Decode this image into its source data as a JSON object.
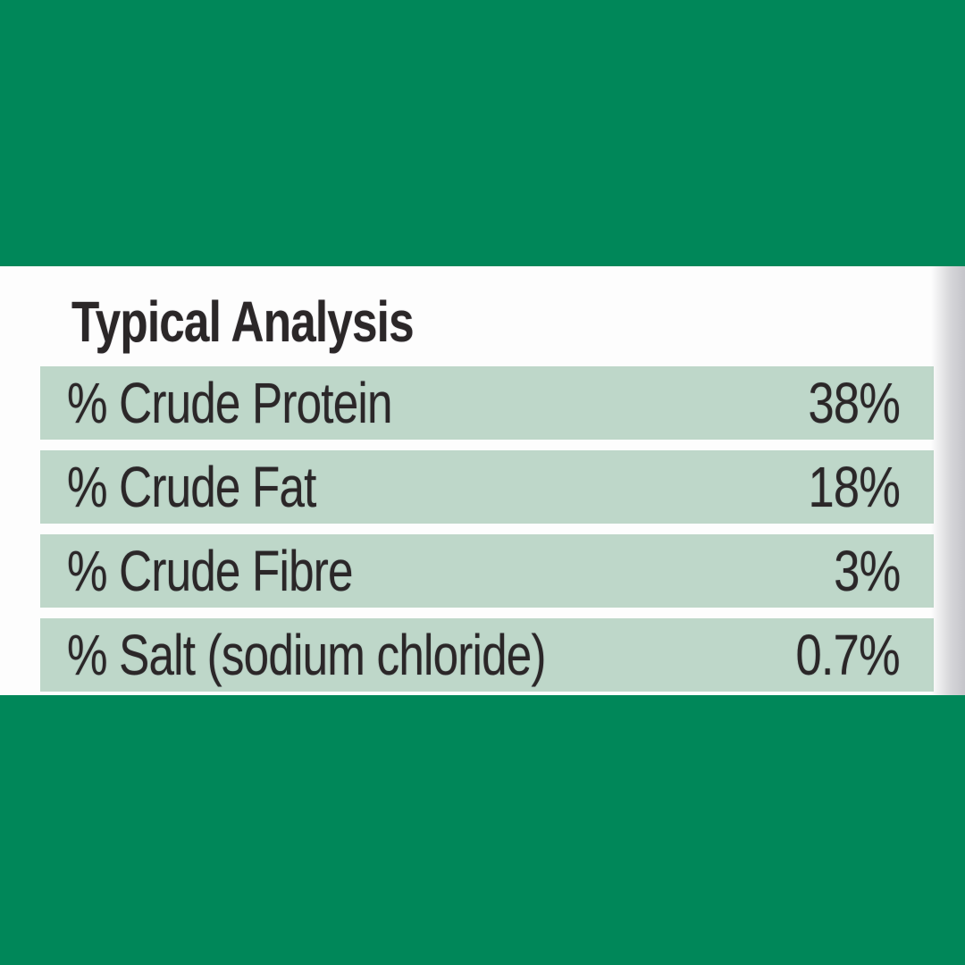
{
  "colors": {
    "band_green": "#008759",
    "row_green": "#BED7C9",
    "panel_white": "#FDFDFD",
    "text_dark": "#2B2728"
  },
  "panel": {
    "title": "Typical Analysis",
    "rows": [
      {
        "label": "% Crude Protein",
        "value": "38%"
      },
      {
        "label": "% Crude Fat",
        "value": "18%"
      },
      {
        "label": "% Crude Fibre",
        "value": "3%"
      },
      {
        "label": "% Salt (sodium chloride)",
        "value": "0.7%"
      }
    ]
  }
}
